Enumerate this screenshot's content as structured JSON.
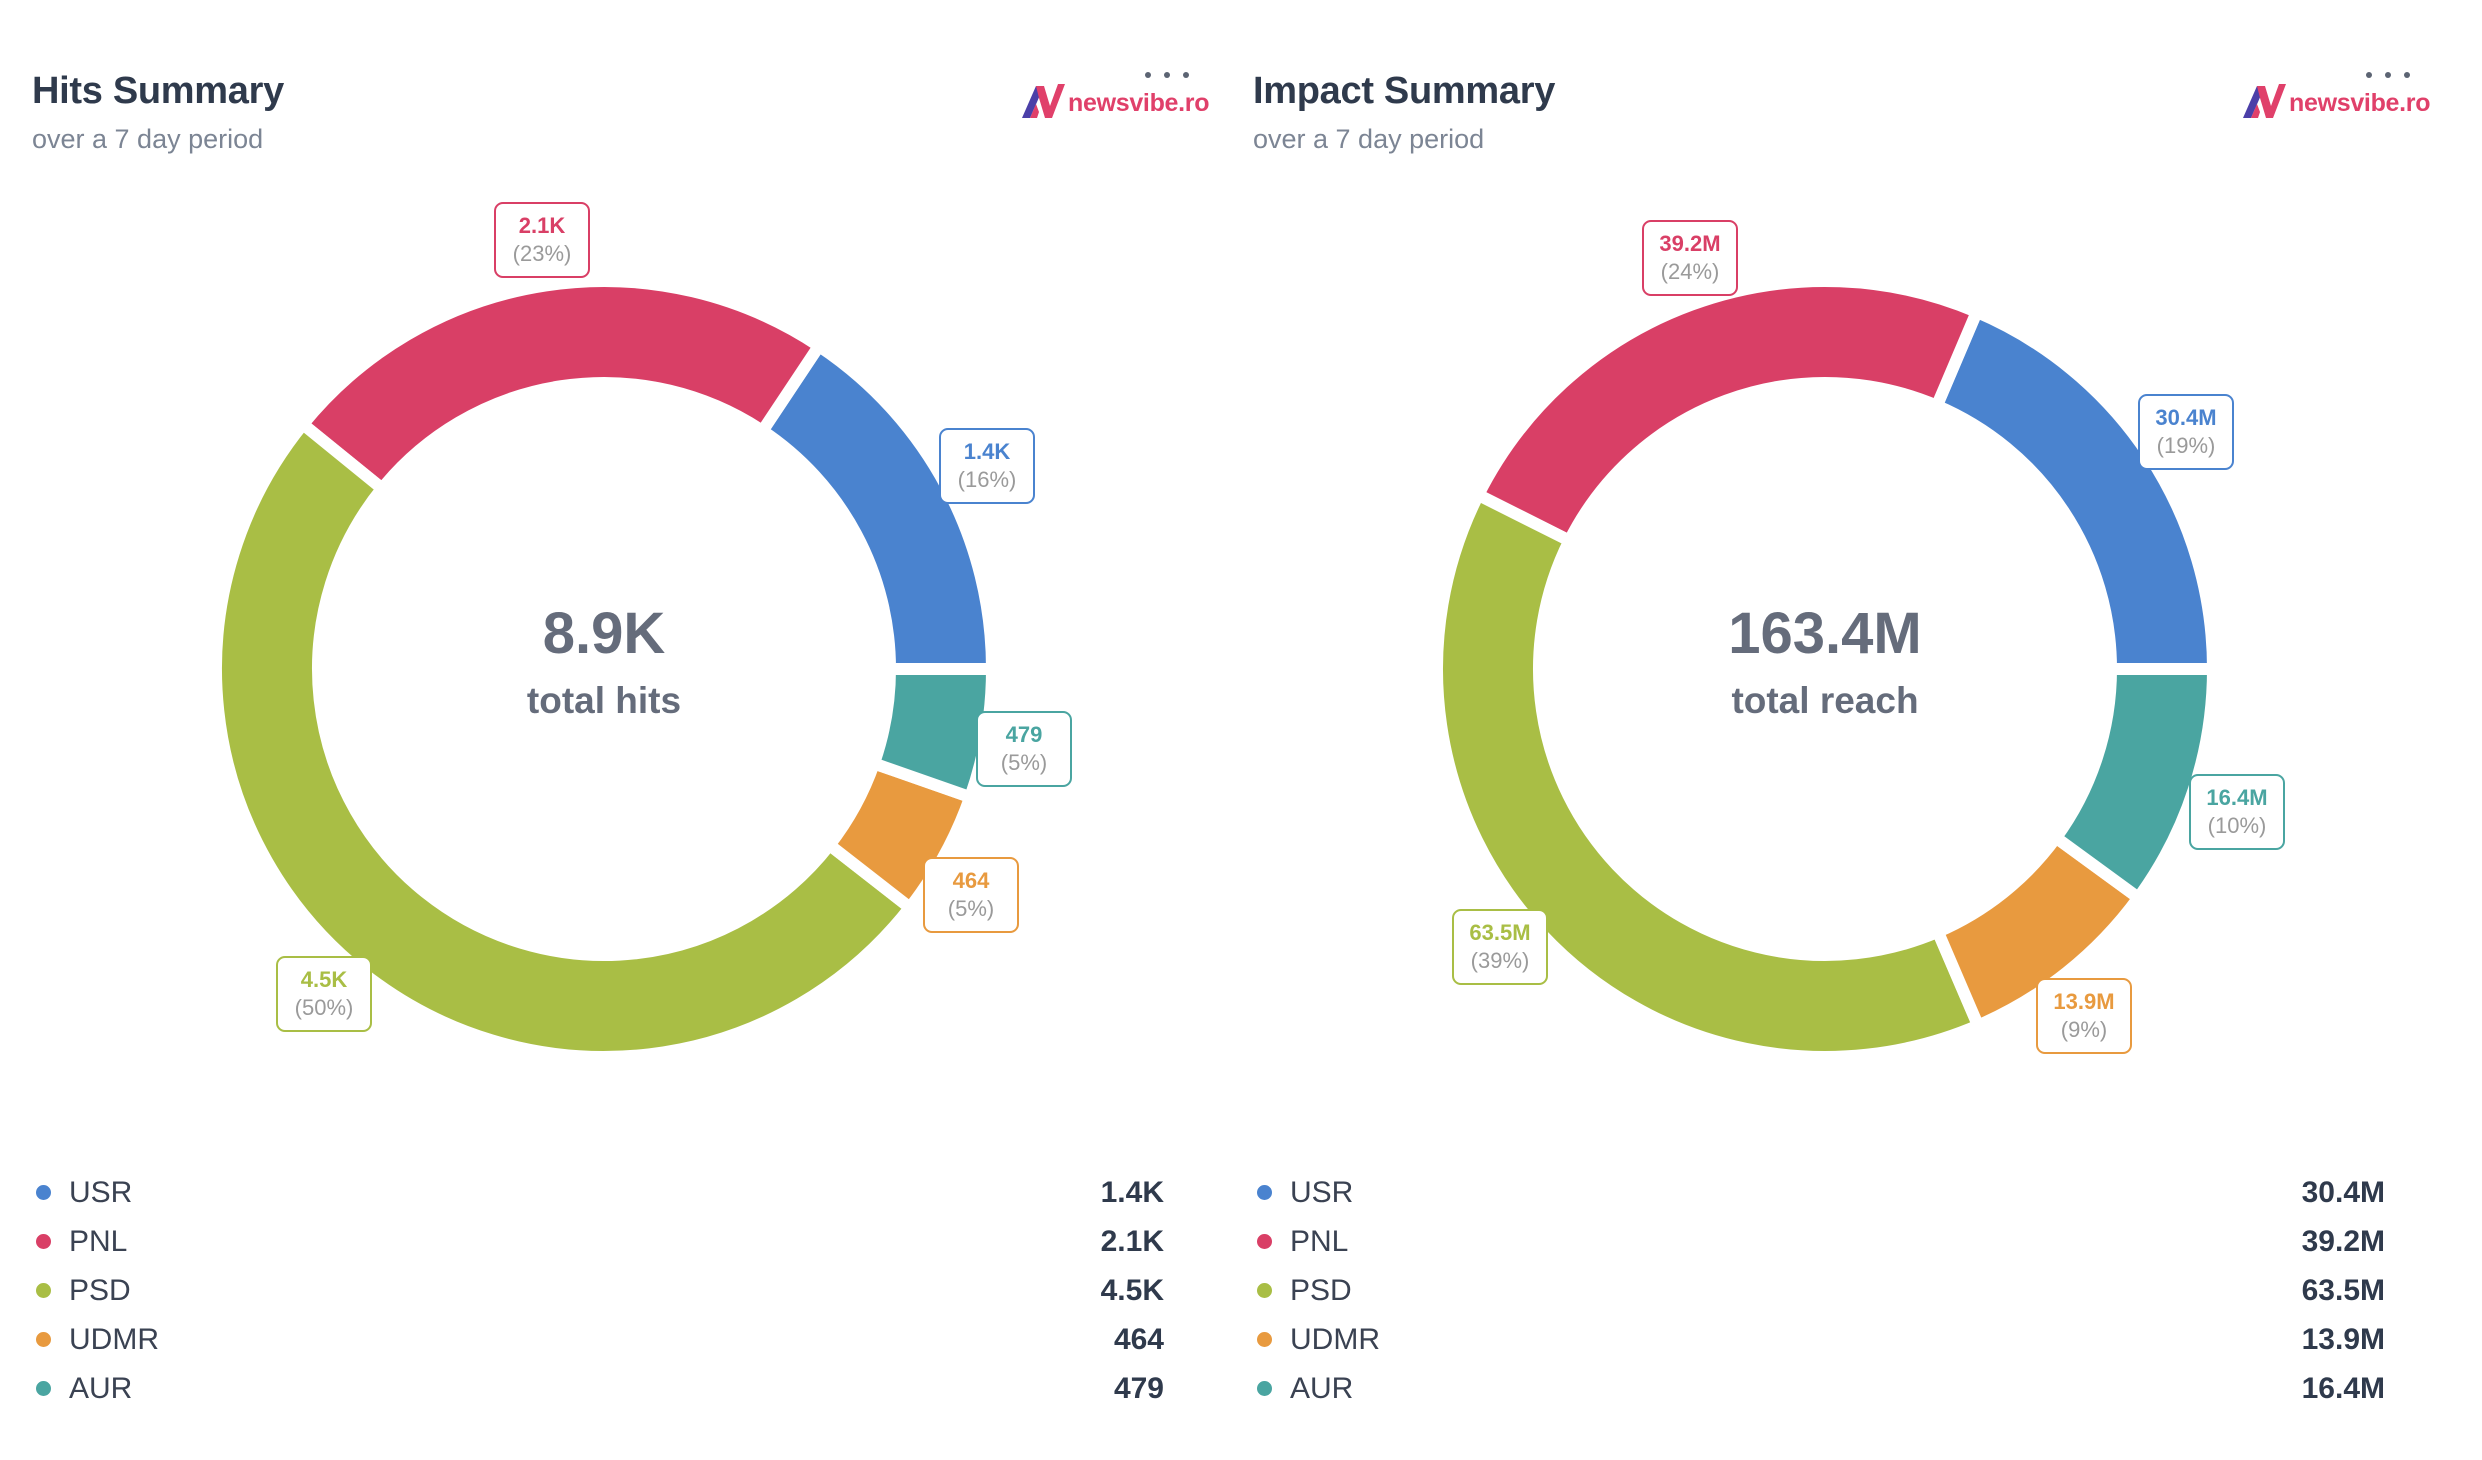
{
  "brand": {
    "name": "newsvibe.ro",
    "primary": "#e0406a",
    "secondary": "#4b3fa8"
  },
  "series_colors": {
    "USR": "#4a83cf",
    "PNL": "#d93f66",
    "PSD": "#a9be45",
    "UDMR": "#e89a3f",
    "AUR": "#4aa5a1"
  },
  "panels": [
    {
      "id": "hits",
      "title": "Hits Summary",
      "subtitle": "over a 7 day period",
      "menu_icon": "more-horizontal-icon",
      "center_value": "8.9K",
      "center_label": "total hits",
      "legend": [
        {
          "name": "USR",
          "value": "1.4K"
        },
        {
          "name": "PNL",
          "value": "2.1K"
        },
        {
          "name": "PSD",
          "value": "4.5K"
        },
        {
          "name": "UDMR",
          "value": "464"
        },
        {
          "name": "AUR",
          "value": "479"
        }
      ],
      "labels": [
        {
          "name": "USR",
          "value": "1.4K",
          "pct": "(16%)"
        },
        {
          "name": "PNL",
          "value": "2.1K",
          "pct": "(23%)"
        },
        {
          "name": "PSD",
          "value": "4.5K",
          "pct": "(50%)"
        },
        {
          "name": "UDMR",
          "value": "464",
          "pct": "(5%)"
        },
        {
          "name": "AUR",
          "value": "479",
          "pct": "(5%)"
        }
      ]
    },
    {
      "id": "impact",
      "title": "Impact Summary",
      "subtitle": "over a 7 day period",
      "menu_icon": "more-horizontal-icon",
      "center_value": "163.4M",
      "center_label": "total reach",
      "legend": [
        {
          "name": "USR",
          "value": "30.4M"
        },
        {
          "name": "PNL",
          "value": "39.2M"
        },
        {
          "name": "PSD",
          "value": "63.5M"
        },
        {
          "name": "UDMR",
          "value": "13.9M"
        },
        {
          "name": "AUR",
          "value": "16.4M"
        }
      ],
      "labels": [
        {
          "name": "USR",
          "value": "30.4M",
          "pct": "(19%)"
        },
        {
          "name": "PNL",
          "value": "39.2M",
          "pct": "(24%)"
        },
        {
          "name": "PSD",
          "value": "63.5M",
          "pct": "(39%)"
        },
        {
          "name": "UDMR",
          "value": "13.9M",
          "pct": "(9%)"
        },
        {
          "name": "AUR",
          "value": "16.4M",
          "pct": "(10%)"
        }
      ]
    }
  ],
  "chart_data": [
    {
      "type": "pie",
      "variant": "donut",
      "title": "Hits Summary",
      "subtitle": "over a 7 day period",
      "categories": [
        "USR",
        "PNL",
        "PSD",
        "UDMR",
        "AUR"
      ],
      "values": [
        1400,
        2100,
        4500,
        464,
        479
      ],
      "value_labels": [
        "1.4K",
        "2.1K",
        "4.5K",
        "464",
        "479"
      ],
      "percentages": [
        16,
        23,
        50,
        5,
        5
      ],
      "total_label": "8.9K",
      "center_caption": "total hits",
      "start": "east",
      "direction": "counterclockwise",
      "legend_position": "bottom"
    },
    {
      "type": "pie",
      "variant": "donut",
      "title": "Impact Summary",
      "subtitle": "over a 7 day period",
      "categories": [
        "USR",
        "PNL",
        "PSD",
        "UDMR",
        "AUR"
      ],
      "values": [
        30.4,
        39.2,
        63.5,
        13.9,
        16.4
      ],
      "units": "millions",
      "value_labels": [
        "30.4M",
        "39.2M",
        "63.5M",
        "13.9M",
        "16.4M"
      ],
      "percentages": [
        19,
        24,
        39,
        9,
        10
      ],
      "total_label": "163.4M",
      "center_caption": "total reach",
      "start": "east",
      "direction": "counterclockwise",
      "legend_position": "bottom"
    }
  ]
}
